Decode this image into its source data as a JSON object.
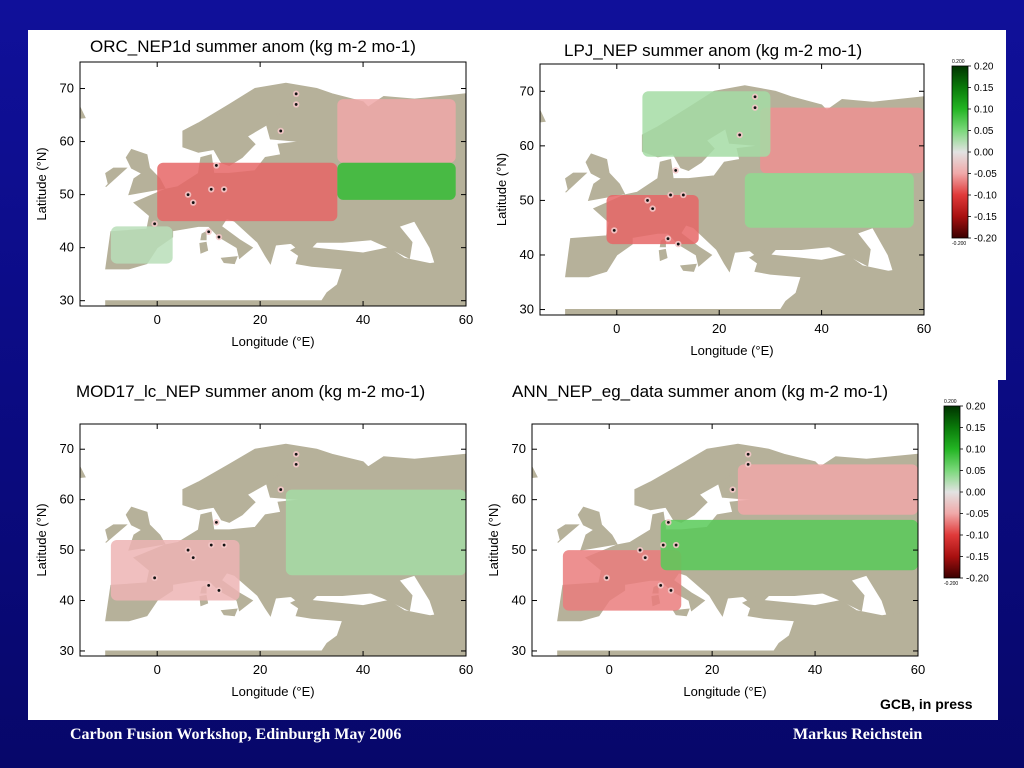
{
  "slide": {
    "footer_left": "Carbon Fusion Workshop, Edinburgh May 2006",
    "footer_right": "Markus Reichstein",
    "citation": "GCB, in press",
    "colors": {
      "background": "#0b0b8c",
      "land": "#b6b19a",
      "positive": "#22bb22",
      "negative": "#e02828",
      "site_marker": "#111111"
    }
  },
  "colorbar": {
    "ticks": [
      "0.20",
      "0.15",
      "0.10",
      "0.05",
      "0.00",
      "-0.05",
      "-0.10",
      "-0.15",
      "-0.20"
    ],
    "top_note": "0.200",
    "bottom_note": "-0.200",
    "colors": [
      "#003300",
      "#0a7a0a",
      "#23b523",
      "#7bd87b",
      "#e2e2e2",
      "#f0a8a8",
      "#e03a3a",
      "#a81010",
      "#3a0000"
    ]
  },
  "chart_data": [
    {
      "type": "heatmap",
      "title": "ORC_NEP1d summer anom (kg m-2 mo-1)",
      "xlabel": "Longitude (°E)",
      "ylabel": "Latitude (°N)",
      "xticks": [
        "0",
        "20",
        "40",
        "60"
      ],
      "yticks": [
        "30",
        "40",
        "50",
        "60",
        "70"
      ],
      "xlim": [
        -15,
        60
      ],
      "ylim": [
        29,
        75
      ],
      "value_range": [
        -0.2,
        0.2
      ],
      "sites": [
        [
          27,
          69
        ],
        [
          27,
          67
        ],
        [
          24,
          62
        ],
        [
          11.5,
          55.5
        ],
        [
          10.5,
          51
        ],
        [
          6,
          50
        ],
        [
          13,
          51
        ],
        [
          7,
          48.5
        ],
        [
          -0.5,
          44.5
        ],
        [
          10,
          43
        ],
        [
          12,
          42
        ]
      ],
      "regions": [
        {
          "desc": "central Europe",
          "lon": [
            0,
            35
          ],
          "lat": [
            45,
            56
          ],
          "value": -0.08
        },
        {
          "desc": "northern Russia",
          "lon": [
            35,
            58
          ],
          "lat": [
            56,
            68
          ],
          "value": -0.05
        },
        {
          "desc": "southern Russia",
          "lon": [
            35,
            58
          ],
          "lat": [
            49,
            56
          ],
          "value": 0.09
        },
        {
          "desc": "Iberia",
          "lon": [
            -9,
            3
          ],
          "lat": [
            37,
            44
          ],
          "value": 0.02
        }
      ]
    },
    {
      "type": "heatmap",
      "title": "LPJ_NEP summer anom (kg m-2 mo-1)",
      "xlabel": "Longitude (°E)",
      "ylabel": "Latitude (°N)",
      "xticks": [
        "0",
        "20",
        "40",
        "60"
      ],
      "yticks": [
        "30",
        "40",
        "50",
        "60",
        "70"
      ],
      "xlim": [
        -15,
        60
      ],
      "ylim": [
        29,
        75
      ],
      "value_range": [
        -0.2,
        0.2
      ],
      "sites": [
        [
          27,
          69
        ],
        [
          27,
          67
        ],
        [
          24,
          62
        ],
        [
          11.5,
          55.5
        ],
        [
          10.5,
          51
        ],
        [
          6,
          50
        ],
        [
          13,
          51
        ],
        [
          7,
          48.5
        ],
        [
          -0.5,
          44.5
        ],
        [
          10,
          43
        ],
        [
          12,
          42
        ]
      ],
      "regions": [
        {
          "desc": "France/Italy",
          "lon": [
            -2,
            16
          ],
          "lat": [
            42,
            51
          ],
          "value": -0.08
        },
        {
          "desc": "European Russia north",
          "lon": [
            28,
            60
          ],
          "lat": [
            55,
            67
          ],
          "value": -0.06
        },
        {
          "desc": "European Russia south",
          "lon": [
            25,
            58
          ],
          "lat": [
            45,
            55
          ],
          "value": 0.04
        },
        {
          "desc": "Scandinavia",
          "lon": [
            5,
            30
          ],
          "lat": [
            58,
            70
          ],
          "value": 0.03
        }
      ]
    },
    {
      "type": "heatmap",
      "title": "MOD17_lc_NEP summer anom (kg m-2 mo-1)",
      "xlabel": "Longitude (°E)",
      "ylabel": "Latitude (°N)",
      "xticks": [
        "0",
        "20",
        "40",
        "60"
      ],
      "yticks": [
        "30",
        "40",
        "50",
        "60",
        "70"
      ],
      "xlim": [
        -15,
        60
      ],
      "ylim": [
        29,
        75
      ],
      "value_range": [
        -0.2,
        0.2
      ],
      "sites": [
        [
          27,
          69
        ],
        [
          27,
          67
        ],
        [
          24,
          62
        ],
        [
          11.5,
          55.5
        ],
        [
          10.5,
          51
        ],
        [
          6,
          50
        ],
        [
          13,
          51
        ],
        [
          7,
          48.5
        ],
        [
          -0.5,
          44.5
        ],
        [
          10,
          43
        ],
        [
          12,
          42
        ]
      ],
      "regions": [
        {
          "desc": "western Europe",
          "lon": [
            -9,
            16
          ],
          "lat": [
            40,
            52
          ],
          "value": -0.04
        },
        {
          "desc": "European Russia",
          "lon": [
            25,
            60
          ],
          "lat": [
            45,
            62
          ],
          "value": 0.03
        }
      ]
    },
    {
      "type": "heatmap",
      "title": "ANN_NEP_eg_data summer anom (kg m-2 mo-1)",
      "xlabel": "Longitude (°E)",
      "ylabel": "Latitude (°N)",
      "xticks": [
        "0",
        "20",
        "40",
        "60"
      ],
      "yticks": [
        "30",
        "40",
        "50",
        "60",
        "70"
      ],
      "xlim": [
        -15,
        60
      ],
      "ylim": [
        29,
        75
      ],
      "value_range": [
        -0.2,
        0.2
      ],
      "sites": [
        [
          27,
          69
        ],
        [
          27,
          67
        ],
        [
          24,
          62
        ],
        [
          11.5,
          55.5
        ],
        [
          10.5,
          51
        ],
        [
          6,
          50
        ],
        [
          13,
          51
        ],
        [
          7,
          48.5
        ],
        [
          -0.5,
          44.5
        ],
        [
          10,
          43
        ],
        [
          12,
          42
        ]
      ],
      "regions": [
        {
          "desc": "France/Iberia",
          "lon": [
            -9,
            14
          ],
          "lat": [
            38,
            50
          ],
          "value": -0.07
        },
        {
          "desc": "northern Russia",
          "lon": [
            25,
            60
          ],
          "lat": [
            57,
            67
          ],
          "value": -0.05
        },
        {
          "desc": "southern Russia",
          "lon": [
            10,
            60
          ],
          "lat": [
            46,
            56
          ],
          "value": 0.07
        }
      ]
    }
  ]
}
